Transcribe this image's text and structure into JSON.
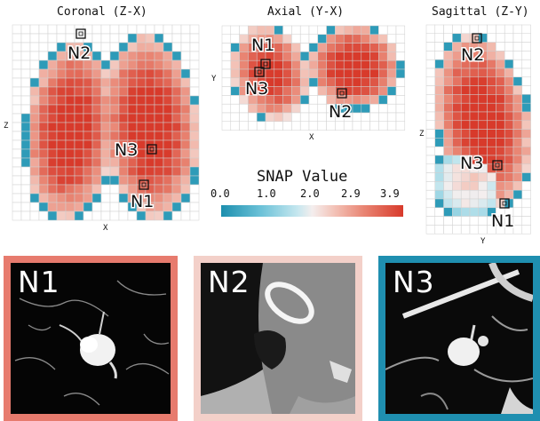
{
  "views": {
    "coronal": {
      "title": "Coronal (Z-X)",
      "xaxis": "X",
      "yaxis": "Z"
    },
    "axial": {
      "title": "Axial (Y-X)",
      "xaxis": "X",
      "yaxis": "Y"
    },
    "sagittal": {
      "title": "Sagittal (Z-Y)",
      "xaxis": "Y",
      "yaxis": "Z"
    }
  },
  "markers": {
    "n1": "N1",
    "n2": "N2",
    "n3": "N3"
  },
  "legend": {
    "title": "SNAP Value",
    "ticks": [
      "0.0",
      "1.0",
      "2.0",
      "2.9",
      "3.9"
    ],
    "min": 0.0,
    "max": 3.9,
    "colors": {
      "low": "#1c8fae",
      "mid": "#f4eeee",
      "high": "#d83a2b"
    }
  },
  "patches": [
    {
      "label": "N1",
      "border_color": "#e77b6e",
      "background": "#050505"
    },
    {
      "label": "N2",
      "border_color": "#f3d0c9",
      "background": "#7a7a7a"
    },
    {
      "label": "N3",
      "border_color": "#1f8fb0",
      "background": "#0a0a0a"
    }
  ]
}
